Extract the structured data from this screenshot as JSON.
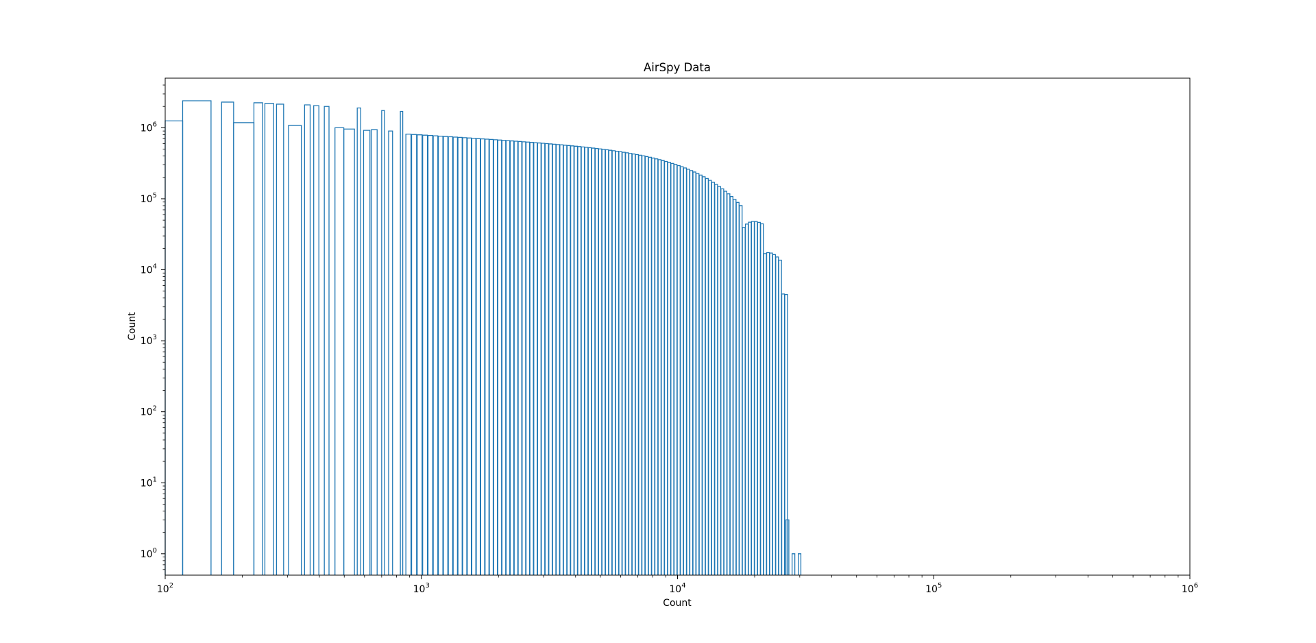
{
  "chart_data": {
    "type": "histogram",
    "title": "AirSpy Data",
    "xlabel": "Count",
    "ylabel": "Count",
    "xscale": "log",
    "yscale": "log",
    "xlim": [
      100,
      1000000
    ],
    "ylim": [
      0.5,
      5000000
    ],
    "grid": false,
    "legend": "none",
    "color": "#1f77b4",
    "x_ticks": [
      {
        "value": 100,
        "base": "10",
        "exp": "2"
      },
      {
        "value": 1000,
        "base": "10",
        "exp": "3"
      },
      {
        "value": 10000,
        "base": "10",
        "exp": "4"
      },
      {
        "value": 100000,
        "base": "10",
        "exp": "5"
      },
      {
        "value": 1000000,
        "base": "10",
        "exp": "6"
      }
    ],
    "y_ticks": [
      {
        "value": 1,
        "base": "10",
        "exp": "0"
      },
      {
        "value": 10,
        "base": "10",
        "exp": "1"
      },
      {
        "value": 100,
        "base": "10",
        "exp": "2"
      },
      {
        "value": 1000,
        "base": "10",
        "exp": "3"
      },
      {
        "value": 10000,
        "base": "10",
        "exp": "4"
      },
      {
        "value": 100000,
        "base": "10",
        "exp": "5"
      },
      {
        "value": 1000000,
        "base": "10",
        "exp": "6"
      }
    ],
    "bins": [
      {
        "x0": 100,
        "x1": 117,
        "count": 1250000
      },
      {
        "x0": 117,
        "x1": 151,
        "count": 2400000
      },
      {
        "x0": 166,
        "x1": 185,
        "count": 2300000
      },
      {
        "x0": 185,
        "x1": 222,
        "count": 1180000
      },
      {
        "x0": 222,
        "x1": 240,
        "count": 2250000
      },
      {
        "x0": 245,
        "x1": 265,
        "count": 2200000
      },
      {
        "x0": 272,
        "x1": 290,
        "count": 2150000
      },
      {
        "x0": 303,
        "x1": 340,
        "count": 1080000
      },
      {
        "x0": 350,
        "x1": 368,
        "count": 2100000
      },
      {
        "x0": 380,
        "x1": 398,
        "count": 2050000
      },
      {
        "x0": 418,
        "x1": 436,
        "count": 2000000
      },
      {
        "x0": 460,
        "x1": 498,
        "count": 1000000
      },
      {
        "x0": 498,
        "x1": 548,
        "count": 960000
      },
      {
        "x0": 562,
        "x1": 580,
        "count": 1900000
      },
      {
        "x0": 595,
        "x1": 630,
        "count": 920000
      },
      {
        "x0": 638,
        "x1": 672,
        "count": 940000
      },
      {
        "x0": 700,
        "x1": 718,
        "count": 1750000
      },
      {
        "x0": 745,
        "x1": 772,
        "count": 900000
      },
      {
        "x0": 828,
        "x1": 846,
        "count": 1700000
      }
    ],
    "tail": {
      "x_start": 870,
      "x_end": 31000,
      "peak_count": 820000,
      "cutoff_x": 14000,
      "cutoff_power": 2.2,
      "last_bins": [
        {
          "x0": 26500,
          "x1": 27200,
          "count": 3
        },
        {
          "x0": 28000,
          "x1": 28700,
          "count": 1
        },
        {
          "x0": 29600,
          "x1": 30300,
          "count": 1
        }
      ]
    }
  }
}
